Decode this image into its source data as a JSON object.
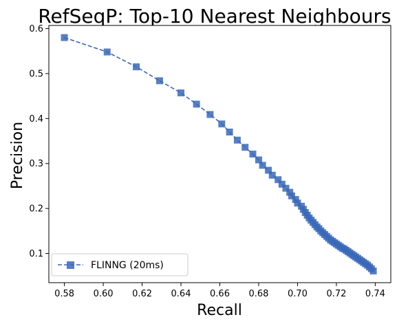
{
  "chart_data": {
    "type": "line",
    "title": "RefSeqP: Top-10 Nearest Neighbours",
    "xlabel": "Recall",
    "ylabel": "Precision",
    "xlim": [
      0.572,
      0.748
    ],
    "ylim": [
      0.035,
      0.607
    ],
    "xticks": [
      "0.58",
      "0.60",
      "0.62",
      "0.64",
      "0.66",
      "0.68",
      "0.70",
      "0.72",
      "0.74"
    ],
    "yticks": [
      "0.1",
      "0.2",
      "0.3",
      "0.4",
      "0.5",
      "0.6"
    ],
    "grid": false,
    "legend_position": "lower-left",
    "colors": {
      "series": "#3a68b8"
    },
    "series": [
      {
        "name": "FLINNG (20ms)",
        "marker": "square",
        "linestyle": "dashed",
        "x": [
          0.58,
          0.602,
          0.617,
          0.629,
          0.64,
          0.648,
          0.655,
          0.661,
          0.665,
          0.669,
          0.673,
          0.677,
          0.68,
          0.682,
          0.685,
          0.687,
          0.69,
          0.692,
          0.694,
          0.696,
          0.697,
          0.699,
          0.7,
          0.702,
          0.703,
          0.704,
          0.705,
          0.706,
          0.707,
          0.708,
          0.709,
          0.71,
          0.711,
          0.712,
          0.713,
          0.714,
          0.715,
          0.716,
          0.717,
          0.718,
          0.719,
          0.72,
          0.721,
          0.722,
          0.723,
          0.724,
          0.725,
          0.726,
          0.727,
          0.728,
          0.729,
          0.73,
          0.731,
          0.732,
          0.733,
          0.734,
          0.735,
          0.736,
          0.737,
          0.738,
          0.739
        ],
        "y": [
          0.58,
          0.548,
          0.515,
          0.484,
          0.457,
          0.432,
          0.409,
          0.388,
          0.37,
          0.352,
          0.336,
          0.321,
          0.308,
          0.296,
          0.285,
          0.274,
          0.264,
          0.254,
          0.245,
          0.236,
          0.228,
          0.22,
          0.212,
          0.205,
          0.198,
          0.191,
          0.185,
          0.179,
          0.174,
          0.169,
          0.164,
          0.159,
          0.155,
          0.15,
          0.146,
          0.142,
          0.138,
          0.134,
          0.13,
          0.127,
          0.124,
          0.121,
          0.118,
          0.115,
          0.112,
          0.11,
          0.107,
          0.104,
          0.101,
          0.098,
          0.095,
          0.092,
          0.089,
          0.086,
          0.083,
          0.08,
          0.077,
          0.074,
          0.07,
          0.066,
          0.061
        ]
      }
    ]
  }
}
